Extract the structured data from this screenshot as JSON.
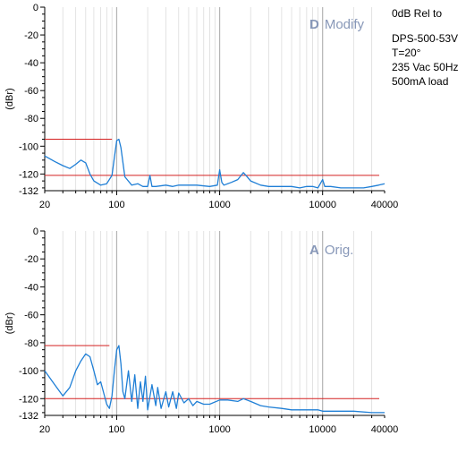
{
  "notes": {
    "line1": "0dB Rel to",
    "line2": "DPS-500-53V",
    "line3": "T=20°",
    "line4": "235 Vac 50Hz",
    "line5": "500mA load"
  },
  "colors": {
    "trace": "#1f7fd6",
    "ref_line": "#d42020",
    "grid": "#c8c8c8",
    "label": "#8898b8"
  },
  "chart_data": [
    {
      "type": "line",
      "label_letter": "D",
      "label_text": "Modify",
      "ylabel": "(dBr)",
      "xscale": "log",
      "xlim": [
        20,
        40000
      ],
      "ylim": [
        -132,
        0
      ],
      "yticks": [
        "0",
        "-20",
        "-40",
        "-60",
        "-80",
        "-100",
        "-120",
        "-132"
      ],
      "xticks": [
        "20",
        "100",
        "1000",
        "10000",
        "40000"
      ],
      "grid": true,
      "reference_lines": [
        {
          "y": -95,
          "x": [
            20,
            90
          ]
        },
        {
          "y": -121,
          "x": [
            20,
            40000
          ]
        }
      ],
      "series": [
        {
          "x": [
            20,
            25,
            30,
            35,
            40,
            45,
            50,
            55,
            60,
            70,
            80,
            90,
            95,
            100,
            105,
            110,
            120,
            140,
            160,
            180,
            200,
            210,
            220,
            240,
            300,
            350,
            400,
            500,
            600,
            800,
            950,
            1000,
            1050,
            1100,
            1300,
            1500,
            1700,
            1800,
            2000,
            2500,
            3000,
            4000,
            5000,
            6000,
            7000,
            8000,
            9000,
            9500,
            10000,
            10500,
            12000,
            15000,
            20000,
            25000,
            30000,
            35000,
            40000
          ],
          "y": [
            -107,
            -111,
            -114,
            -116,
            -113,
            -110,
            -112,
            -120,
            -125,
            -128,
            -127,
            -121,
            -108,
            -96,
            -95,
            -101,
            -122,
            -128,
            -127,
            -129,
            -129,
            -121,
            -129,
            -129,
            -128,
            -129,
            -128,
            -128,
            -128,
            -129,
            -128,
            -117,
            -126,
            -128,
            -126,
            -124,
            -119,
            -121,
            -125,
            -128,
            -129,
            -129,
            -129,
            -130,
            -129,
            -129,
            -130,
            -127,
            -124,
            -129,
            -129,
            -130,
            -130,
            -130,
            -129,
            -128,
            -127
          ]
        }
      ]
    },
    {
      "type": "line",
      "label_letter": "A",
      "label_text": "Orig.",
      "ylabel": "(dBr)",
      "xscale": "log",
      "xlim": [
        20,
        40000
      ],
      "ylim": [
        -132,
        0
      ],
      "yticks": [
        "0",
        "-20",
        "-40",
        "-60",
        "-80",
        "-100",
        "-120",
        "-132"
      ],
      "xticks": [
        "20",
        "100",
        "1000",
        "10000",
        "40000"
      ],
      "grid": true,
      "reference_lines": [
        {
          "y": -82,
          "x": [
            20,
            85
          ]
        },
        {
          "y": -120,
          "x": [
            20,
            40000
          ]
        }
      ],
      "series": [
        {
          "x": [
            20,
            25,
            30,
            35,
            40,
            45,
            50,
            55,
            60,
            65,
            70,
            80,
            85,
            90,
            95,
            100,
            105,
            110,
            115,
            120,
            130,
            140,
            150,
            160,
            170,
            180,
            190,
            200,
            220,
            240,
            250,
            270,
            300,
            320,
            350,
            380,
            400,
            450,
            500,
            550,
            600,
            700,
            800,
            1000,
            1200,
            1500,
            1700,
            2000,
            2500,
            3000,
            4000,
            5000,
            7000,
            9000,
            10000,
            15000,
            20000,
            30000,
            40000
          ],
          "y": [
            -100,
            -110,
            -118,
            -112,
            -100,
            -93,
            -88,
            -90,
            -100,
            -110,
            -108,
            -124,
            -127,
            -118,
            -100,
            -85,
            -82,
            -95,
            -115,
            -120,
            -100,
            -122,
            -103,
            -127,
            -108,
            -122,
            -104,
            -128,
            -110,
            -125,
            -112,
            -127,
            -115,
            -126,
            -115,
            -127,
            -116,
            -123,
            -120,
            -125,
            -122,
            -124,
            -124,
            -121,
            -121,
            -122,
            -120,
            -122,
            -125,
            -126,
            -127,
            -128,
            -128,
            -128,
            -129,
            -129,
            -129,
            -130,
            -130
          ]
        }
      ]
    }
  ]
}
